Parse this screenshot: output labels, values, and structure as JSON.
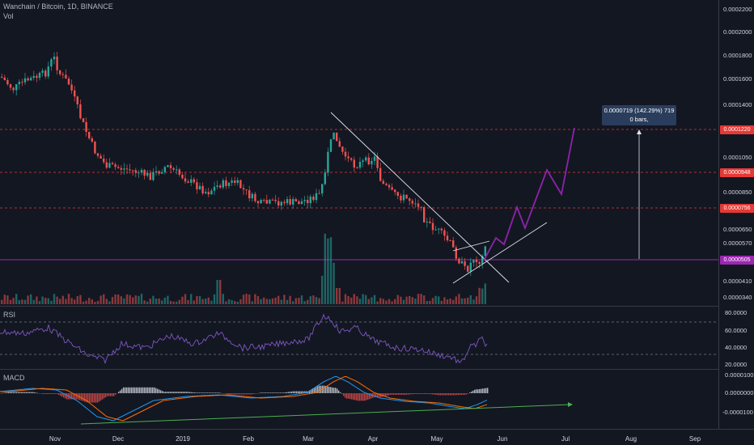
{
  "header": {
    "symbol_line": "Wanchain / Bitcoin, 1D, BINANCE",
    "volume_label": "Vol"
  },
  "indicators": {
    "rsi_label": "RSI",
    "macd_label": "MACD"
  },
  "price_axis": {
    "ticks": [
      "0.0002200",
      "0.0002000",
      "0.0001800",
      "0.0001600",
      "0.0001400",
      "0.0001050",
      "0.0000850",
      "0.0000650",
      "0.0000570",
      "0.0000410",
      "0.0000340"
    ],
    "tags": [
      {
        "label": "0.0001220",
        "color": "#e53935"
      },
      {
        "label": "0.0000948",
        "color": "#e53935"
      },
      {
        "label": "0.0000756",
        "color": "#e53935"
      },
      {
        "label": "0.0000505",
        "color": "#9c27b0"
      }
    ]
  },
  "rsi_axis": {
    "ticks": [
      "80.0000",
      "60.0000",
      "40.0000",
      "20.0000"
    ]
  },
  "macd_axis": {
    "ticks": [
      "0.0000100",
      "0.0000000",
      "-0.0000100"
    ]
  },
  "time_axis": {
    "labels": [
      "Nov",
      "Dec",
      "2019",
      "Feb",
      "Mar",
      "Apr",
      "May",
      "Jun",
      "Jul",
      "Aug",
      "Sep"
    ]
  },
  "measure_callout": {
    "line1": "0.0000719 (142.29%) 719",
    "line2": "0 bars,"
  },
  "colors": {
    "up": "#26a69a",
    "down": "#ef5350",
    "projection": "#8e24aa",
    "rsi": "#7e57c2",
    "macd": "#2196f3",
    "signal": "#ff6d00",
    "divergence": "#4caf50",
    "background": "#131722"
  }
}
